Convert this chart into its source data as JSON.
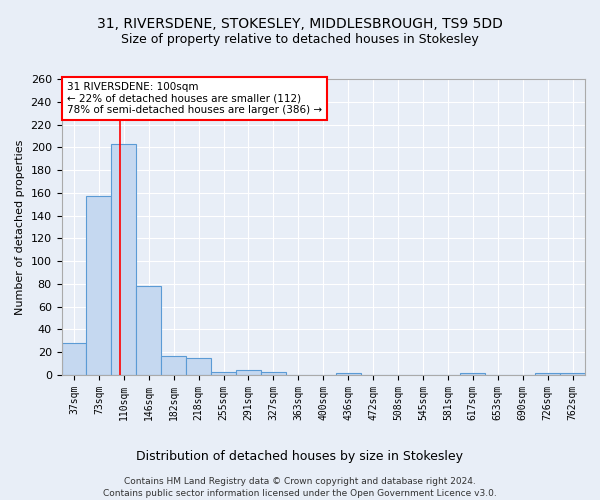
{
  "title_line1": "31, RIVERSDENE, STOKESLEY, MIDDLESBROUGH, TS9 5DD",
  "title_line2": "Size of property relative to detached houses in Stokesley",
  "xlabel": "Distribution of detached houses by size in Stokesley",
  "ylabel": "Number of detached properties",
  "bar_color": "#c5d8f0",
  "bar_edge_color": "#5b9bd5",
  "categories": [
    "37sqm",
    "73sqm",
    "110sqm",
    "146sqm",
    "182sqm",
    "218sqm",
    "255sqm",
    "291sqm",
    "327sqm",
    "363sqm",
    "400sqm",
    "436sqm",
    "472sqm",
    "508sqm",
    "545sqm",
    "581sqm",
    "617sqm",
    "653sqm",
    "690sqm",
    "726sqm",
    "762sqm"
  ],
  "values": [
    28,
    157,
    203,
    78,
    17,
    15,
    3,
    4,
    3,
    0,
    0,
    2,
    0,
    0,
    0,
    0,
    2,
    0,
    0,
    2,
    2
  ],
  "ylim": [
    0,
    260
  ],
  "yticks": [
    0,
    20,
    40,
    60,
    80,
    100,
    120,
    140,
    160,
    180,
    200,
    220,
    240,
    260
  ],
  "red_line_x": 1.85,
  "annotation_text": "31 RIVERSDENE: 100sqm\n← 22% of detached houses are smaller (112)\n78% of semi-detached houses are larger (386) →",
  "annotation_box_color": "white",
  "annotation_box_edgecolor": "red",
  "footer_line1": "Contains HM Land Registry data © Crown copyright and database right 2024.",
  "footer_line2": "Contains public sector information licensed under the Open Government Licence v3.0.",
  "background_color": "#e8eef7",
  "grid_color": "white"
}
